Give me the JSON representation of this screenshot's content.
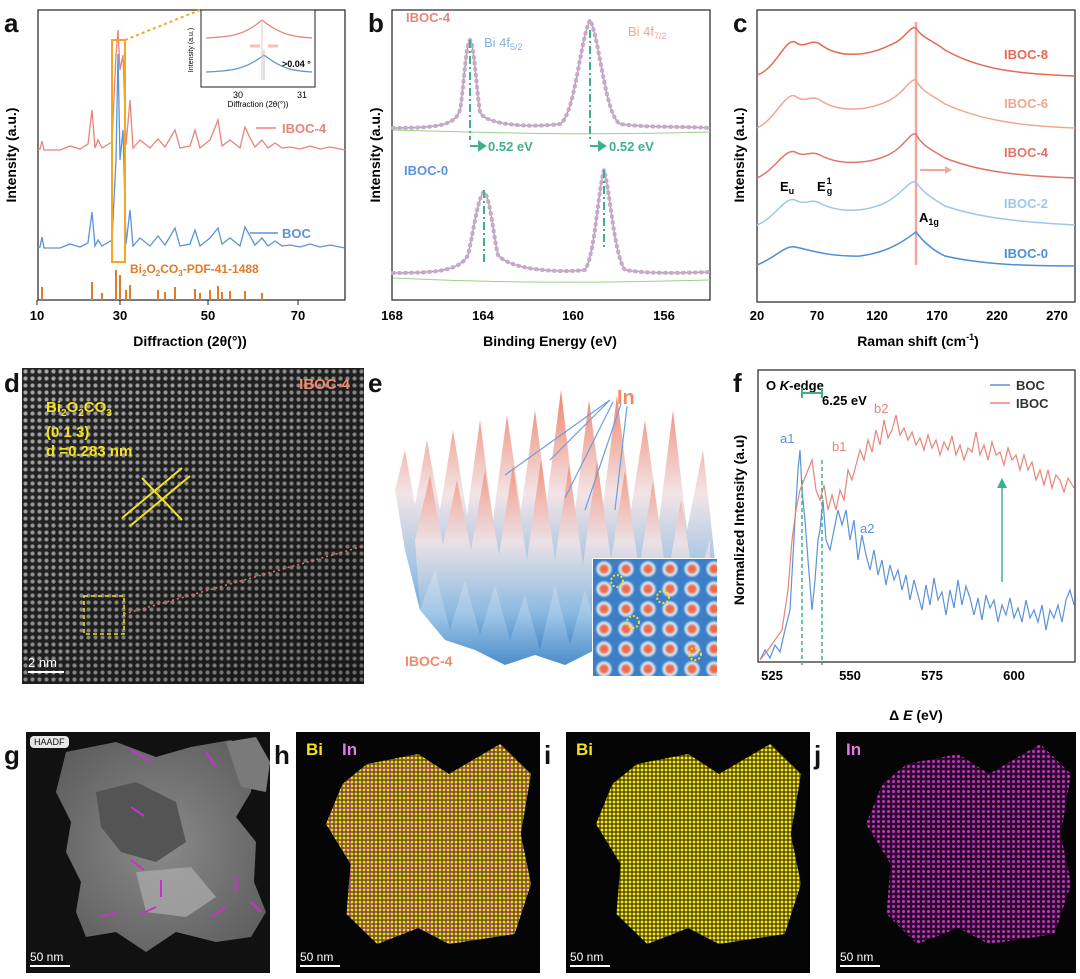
{
  "panel_labels": {
    "a": "a",
    "b": "b",
    "c": "c",
    "d": "d",
    "e": "e",
    "f": "f",
    "g": "g",
    "h": "h",
    "i": "i",
    "j": "j"
  },
  "colors": {
    "iboc": "#e8847a",
    "boc": "#5b93d8",
    "pdf": "#e07b2a",
    "green": "#3fb08c",
    "yellow": "#f4e21a",
    "magenta": "#c535c5"
  },
  "panel_a": {
    "xlabel": "Diffraction (2θ(°))",
    "ylabel": "Intensity (a.u.)",
    "xticks": [
      "10",
      "30",
      "50",
      "70"
    ],
    "legend_iboc": "IBOC-4",
    "legend_boc": "BOC",
    "pdf_label_parts": [
      "Bi",
      "2",
      "O",
      "2",
      "CO",
      "3",
      "-PDF-41-1488"
    ],
    "inset": {
      "ylabel": "Intensity (a.u.)",
      "xlabel": "Diffraction (2θ(°))",
      "xticks": [
        "30",
        "31"
      ],
      "shift": ">0.04 °"
    }
  },
  "panel_b": {
    "xlabel": "Binding Energy (eV)",
    "ylabel": "Intensity (a.u.)",
    "xticks": [
      "168",
      "164",
      "160",
      "156"
    ],
    "top_sample": "IBOC-4",
    "bottom_sample": "IBOC-0",
    "peak1_label": "Bi 4f",
    "peak1_sub": "5/2",
    "peak2_label": "Bi 4f",
    "peak2_sub": "7/2",
    "shift1": "0.52 eV",
    "shift2": "0.52 eV"
  },
  "panel_c": {
    "xlabel": "Raman shift (cm",
    "xlabel_sup": "-1",
    "xlabel_end": ")",
    "ylabel": "Intensity (a.u.)",
    "xticks": [
      "20",
      "70",
      "120",
      "170",
      "220",
      "270"
    ],
    "samples": [
      "IBOC-8",
      "IBOC-6",
      "IBOC-4",
      "IBOC-2",
      "IBOC-0"
    ],
    "mode_eu": "E",
    "mode_eu_sub": "u",
    "mode_eg": "E",
    "mode_eg_sub": "g",
    "mode_eg_sup": "1",
    "mode_a1g": "A",
    "mode_a1g_sub": "1g"
  },
  "panel_d": {
    "sample": "IBOC-4",
    "formula_parts": [
      "Bi",
      "2",
      "O",
      "2",
      "CO",
      "3"
    ],
    "plane": "(0 1 3)",
    "dspacing": "d =0.283 nm",
    "scale": "2 nm"
  },
  "panel_e": {
    "element": "In",
    "sample": "IBOC-4"
  },
  "panel_f": {
    "title_prefix": "O ",
    "title_k": "K",
    "title_suffix": "-edge",
    "xlabel_delta": "Δ ",
    "xlabel_e": "E",
    "xlabel_unit": " (eV)",
    "ylabel": "Normalized Intensity (a.u)",
    "xticks": [
      "525",
      "550",
      "575",
      "600"
    ],
    "legend": [
      "BOC",
      "IBOC"
    ],
    "gap": "6.25 eV",
    "peaks": {
      "a1": "a1",
      "a2": "a2",
      "b1": "b1",
      "b2": "b2"
    }
  },
  "panel_g": {
    "badge": "HAADF",
    "scale": "50 nm"
  },
  "panel_h": {
    "el1": "Bi",
    "el2": "In",
    "scale": "50 nm"
  },
  "panel_i": {
    "el1": "Bi",
    "scale": "50 nm"
  },
  "panel_j": {
    "el1": "In",
    "scale": "50 nm"
  }
}
